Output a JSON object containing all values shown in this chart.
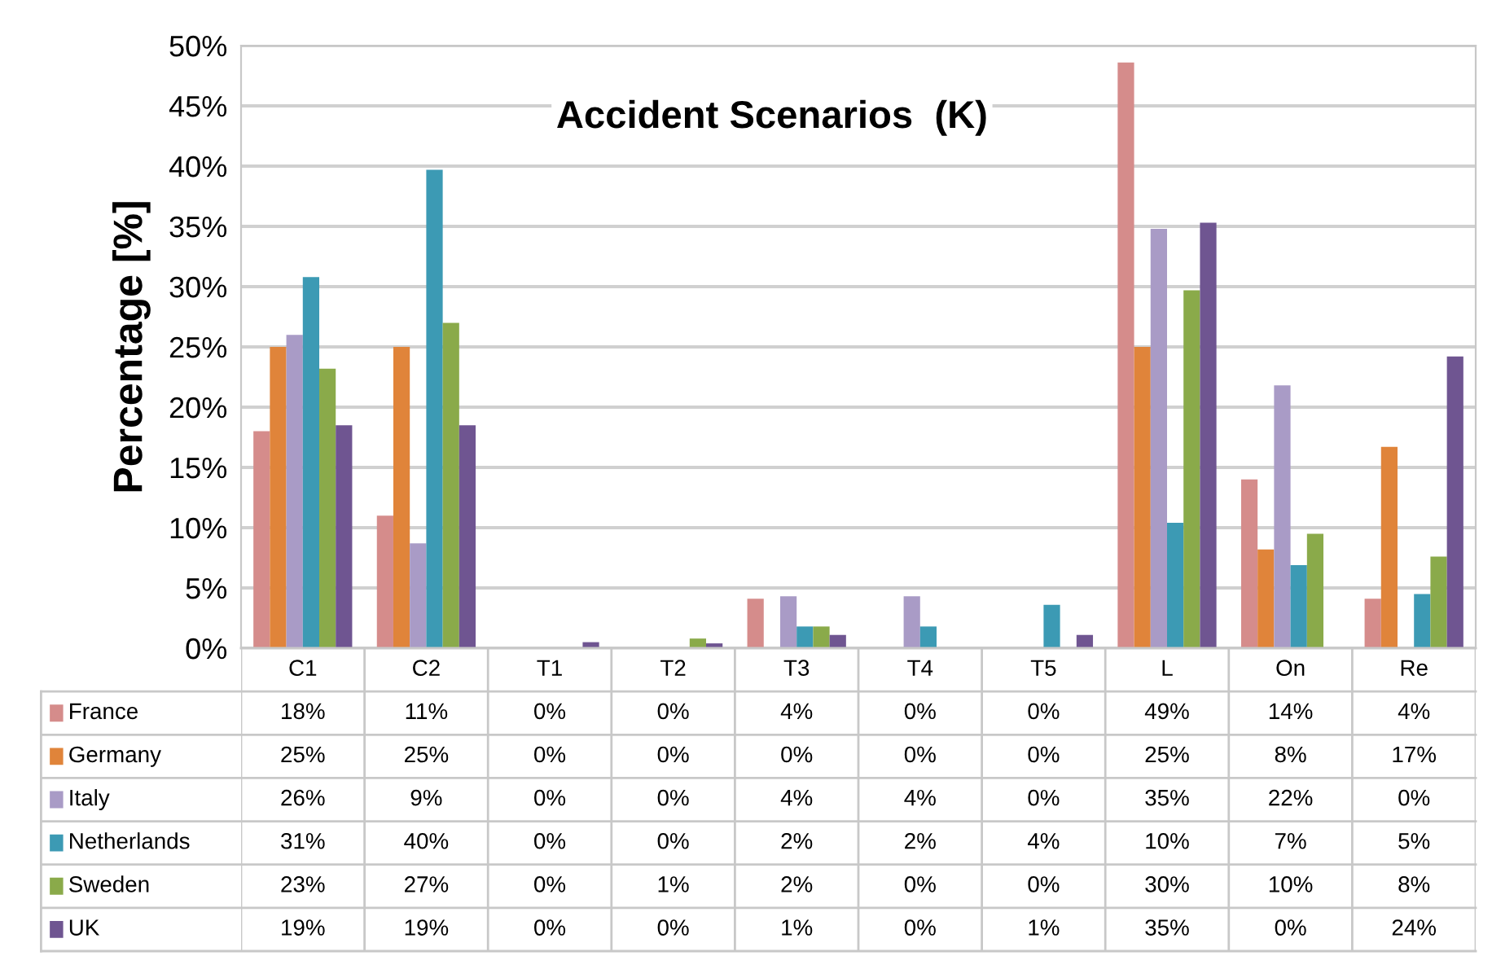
{
  "chart_data": {
    "type": "bar",
    "title": "Accident Scenarios  (K)",
    "ylabel": "Percentage [%]",
    "categories": [
      "C1",
      "C2",
      "T1",
      "T2",
      "T3",
      "T4",
      "T5",
      "L",
      "On",
      "Re"
    ],
    "series": [
      {
        "name": "France",
        "color": "#d58c8b",
        "values": [
          18,
          11,
          0,
          0,
          4.1,
          0,
          0,
          48.6,
          14,
          4.1
        ],
        "value_labels": [
          "18%",
          "11%",
          "0%",
          "0%",
          "4%",
          "0%",
          "0%",
          "49%",
          "14%",
          "4%"
        ]
      },
      {
        "name": "Germany",
        "color": "#e0843a",
        "values": [
          25,
          25,
          0,
          0,
          0,
          0,
          0,
          25,
          8.2,
          16.7
        ],
        "value_labels": [
          "25%",
          "25%",
          "0%",
          "0%",
          "0%",
          "0%",
          "0%",
          "25%",
          "8%",
          "17%"
        ]
      },
      {
        "name": "Italy",
        "color": "#a99bc6",
        "values": [
          26,
          8.7,
          0,
          0,
          4.3,
          4.3,
          0,
          34.8,
          21.8,
          0
        ],
        "value_labels": [
          "26%",
          "9%",
          "0%",
          "0%",
          "4%",
          "4%",
          "0%",
          "35%",
          "22%",
          "0%"
        ]
      },
      {
        "name": "Netherlands",
        "color": "#3c9ab4",
        "values": [
          30.8,
          39.7,
          0,
          0,
          1.8,
          1.8,
          3.6,
          10.4,
          6.9,
          4.5
        ],
        "value_labels": [
          "31%",
          "40%",
          "0%",
          "0%",
          "2%",
          "2%",
          "4%",
          "10%",
          "7%",
          "5%"
        ]
      },
      {
        "name": "Sweden",
        "color": "#8aaa4a",
        "values": [
          23.2,
          27,
          0,
          0.8,
          1.8,
          0,
          0,
          29.7,
          9.5,
          7.6
        ],
        "value_labels": [
          "23%",
          "27%",
          "0%",
          "1%",
          "2%",
          "0%",
          "0%",
          "30%",
          "10%",
          "8%"
        ]
      },
      {
        "name": "UK",
        "color": "#6f5591",
        "values": [
          18.5,
          18.5,
          0.5,
          0.4,
          1.1,
          0,
          1.1,
          35.3,
          0,
          24.2
        ],
        "value_labels": [
          "19%",
          "19%",
          "0%",
          "0%",
          "1%",
          "0%",
          "1%",
          "35%",
          "0%",
          "24%"
        ]
      }
    ],
    "ylim": [
      0,
      50
    ],
    "yticks": [
      {
        "value": 0,
        "label": "0%"
      },
      {
        "value": 5,
        "label": "5%"
      },
      {
        "value": 10,
        "label": "10%"
      },
      {
        "value": 15,
        "label": "15%"
      },
      {
        "value": 20,
        "label": "20%"
      },
      {
        "value": 25,
        "label": "25%"
      },
      {
        "value": 30,
        "label": "30%"
      },
      {
        "value": 35,
        "label": "35%"
      },
      {
        "value": 40,
        "label": "40%"
      },
      {
        "value": 45,
        "label": "45%"
      },
      {
        "value": 50,
        "label": "50%"
      }
    ],
    "grid": "y",
    "legend": "bottom"
  }
}
